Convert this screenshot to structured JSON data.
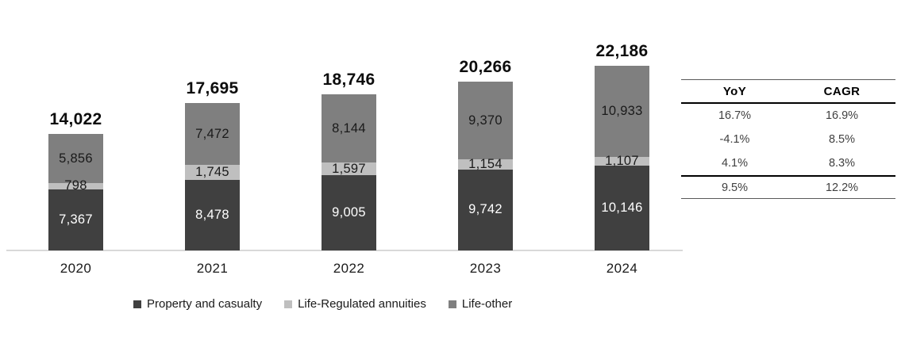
{
  "chart_data": {
    "type": "bar",
    "stacked": true,
    "title": "",
    "xlabel": "",
    "ylabel": "",
    "categories": [
      "2020",
      "2021",
      "2022",
      "2023",
      "2024"
    ],
    "series": [
      {
        "name": "Property and casualty",
        "color": "#404040",
        "label_color": "#ffffff",
        "values": [
          7367,
          8478,
          9005,
          9742,
          10146
        ]
      },
      {
        "name": "Life-Regulated annuities",
        "color": "#bfbfbf",
        "label_color": "#1a1a1a",
        "values": [
          798,
          1745,
          1597,
          1154,
          1107
        ]
      },
      {
        "name": "Life-other",
        "color": "#7f7f7f",
        "label_color": "#1a1a1a",
        "values": [
          5856,
          7472,
          8144,
          9370,
          10933
        ]
      }
    ],
    "totals": [
      14022,
      17695,
      18746,
      20266,
      22186
    ],
    "total_labels": [
      "14,022",
      "17,695",
      "18,746",
      "20,266",
      "22,186"
    ],
    "segment_labels": [
      [
        "7,367",
        "798",
        "5,856"
      ],
      [
        "8,478",
        "1,745",
        "7,472"
      ],
      [
        "9,005",
        "1,597",
        "8,144"
      ],
      [
        "9,742",
        "1,154",
        "9,370"
      ],
      [
        "10,146",
        "1,107",
        "10,933"
      ]
    ],
    "ylim": [
      0,
      22186
    ],
    "grid": false,
    "legend_position": "bottom",
    "axis_line_color": "#d9d9d9"
  },
  "growth_table": {
    "headers": [
      "YoY",
      "CAGR"
    ],
    "rows": [
      [
        "16.7%",
        "16.9%"
      ],
      [
        "-4.1%",
        "8.5%"
      ],
      [
        "4.1%",
        "8.3%"
      ]
    ],
    "total_row": [
      "9.5%",
      "12.2%"
    ]
  }
}
